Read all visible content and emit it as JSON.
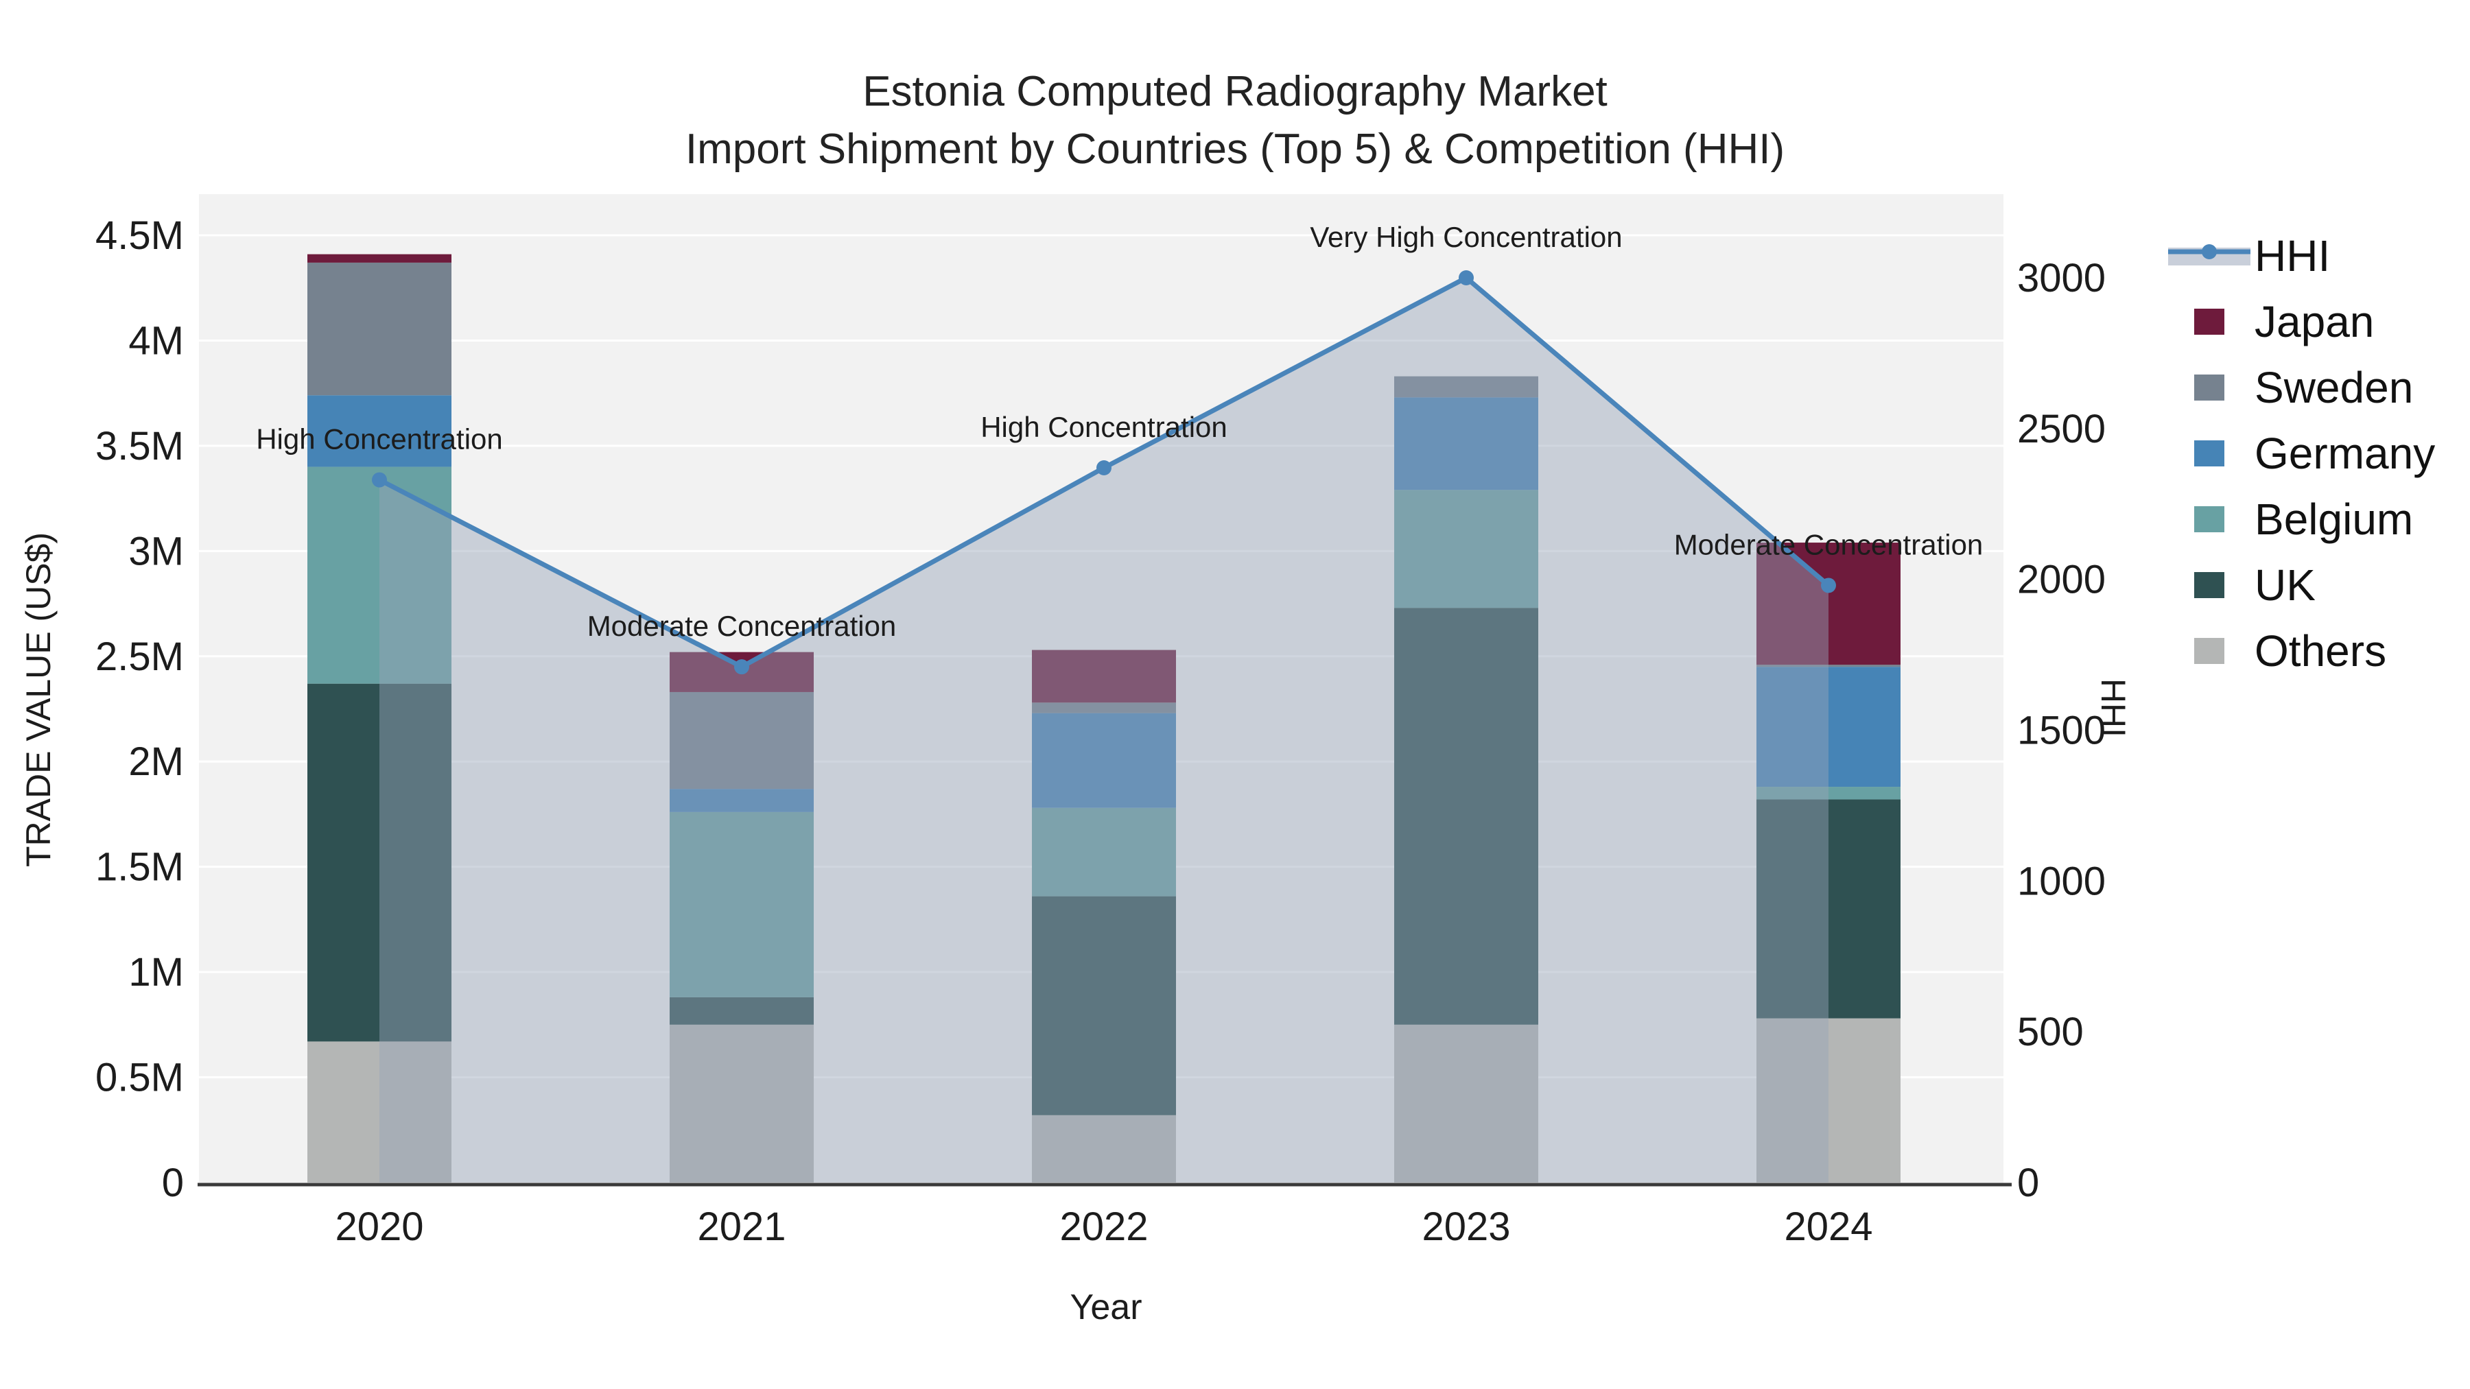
{
  "title": {
    "line1": "Estonia Computed Radiography Market",
    "line2": "Import Shipment by Countries (Top 5) & Competition (HHI)"
  },
  "axes": {
    "left_title": "TRADE VALUE (US$)",
    "right_title": "HHI",
    "x_title": "Year"
  },
  "legend": {
    "items": [
      {
        "label": "HHI",
        "color": "#4a85ba",
        "band_color": "#c9cfda"
      },
      {
        "label": "Japan",
        "color": "#6e1b3c"
      },
      {
        "label": "Sweden",
        "color": "#76828f"
      },
      {
        "label": "Germany",
        "color": "#4684b6"
      },
      {
        "label": "Belgium",
        "color": "#68a1a3"
      },
      {
        "label": "UK",
        "color": "#2f5152"
      },
      {
        "label": "Others",
        "color": "#b4b6b5"
      }
    ]
  },
  "chart_data": [
    {
      "type": "bar",
      "stacked": true,
      "title": "Estonia Computed Radiography Market - Import Shipment by Countries (Top 5) & Competition (HHI)",
      "categories": [
        "2020",
        "2021",
        "2022",
        "2023",
        "2024"
      ],
      "values_unit": "million US$",
      "series": [
        {
          "name": "Others",
          "color": "#b4b6b5",
          "values": [
            0.67,
            0.75,
            0.32,
            0.75,
            0.78
          ]
        },
        {
          "name": "UK",
          "color": "#2f5152",
          "values": [
            1.7,
            0.13,
            1.04,
            1.98,
            1.04
          ]
        },
        {
          "name": "Belgium",
          "color": "#68a1a3",
          "values": [
            1.03,
            0.88,
            0.42,
            0.56,
            0.06
          ]
        },
        {
          "name": "Germany",
          "color": "#4684b6",
          "values": [
            0.34,
            0.11,
            0.45,
            0.44,
            0.57
          ]
        },
        {
          "name": "Sweden",
          "color": "#76828f",
          "values": [
            0.63,
            0.46,
            0.05,
            0.1,
            0.01
          ]
        },
        {
          "name": "Japan",
          "color": "#6e1b3c",
          "values": [
            0.04,
            0.19,
            0.25,
            0.0,
            0.58
          ]
        }
      ],
      "xlabel": "Year",
      "ylabel": "TRADE VALUE (US$)",
      "ylim": [
        0,
        4.5
      ],
      "ytick_values": [
        0,
        0.5,
        1,
        1.5,
        2,
        2.5,
        3,
        3.5,
        4,
        4.5
      ],
      "ytick_labels": [
        "0",
        "0.5M",
        "1M",
        "1.5M",
        "2M",
        "2.5M",
        "3M",
        "3.5M",
        "4M",
        "4.5M"
      ],
      "grid": true,
      "plot_bg": "#f2f2f2",
      "legend_position": "right"
    },
    {
      "type": "line",
      "name": "HHI",
      "axis": "right",
      "x": [
        "2020",
        "2021",
        "2022",
        "2023",
        "2024"
      ],
      "values": [
        2330,
        1710,
        2370,
        3000,
        1980
      ],
      "annotations": [
        "High Concentration",
        "Moderate Concentration",
        "High Concentration",
        "Very High Concentration",
        "Moderate Concentration"
      ],
      "color": "#4a85ba",
      "area_fill": "rgba(150,163,185,0.45)",
      "marker": "circle",
      "ylabel": "HHI",
      "ylim": [
        0,
        3200
      ],
      "ytick_values": [
        0,
        500,
        1000,
        1500,
        2000,
        2500,
        3000
      ],
      "ytick_labels": [
        "0",
        "500",
        "1000",
        "1500",
        "2000",
        "2500",
        "3000"
      ]
    }
  ]
}
